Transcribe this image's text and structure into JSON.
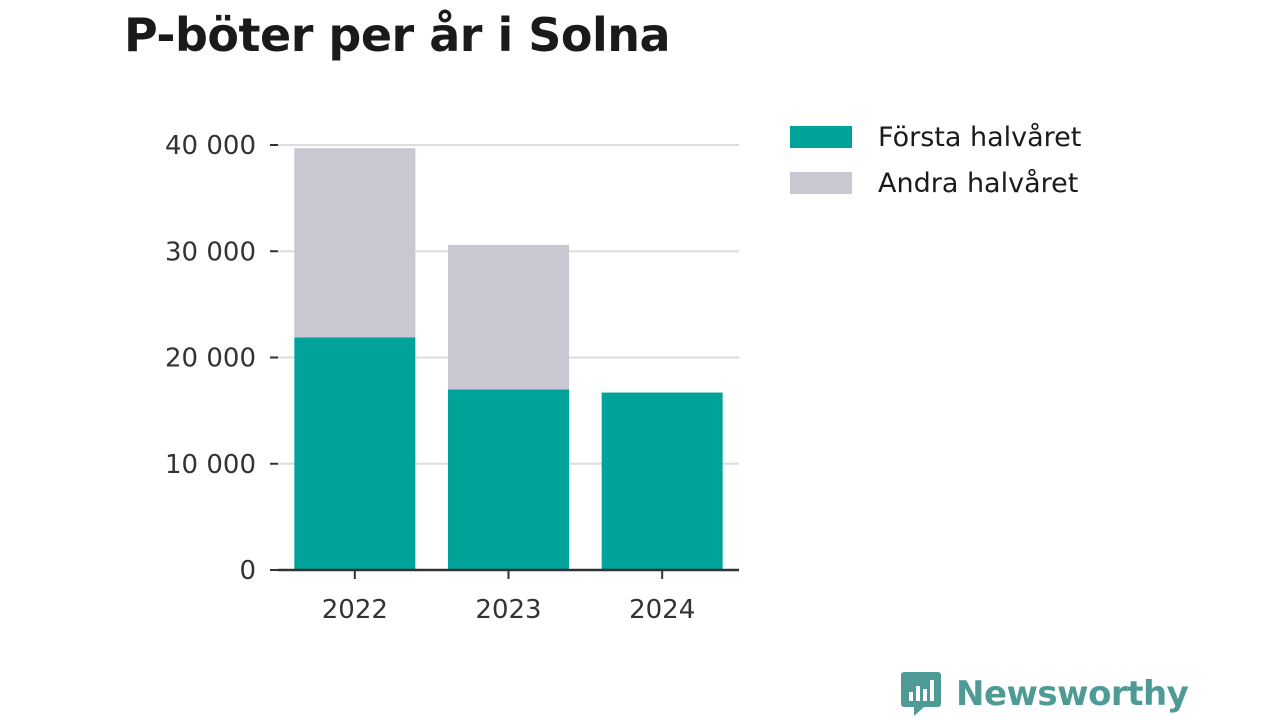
{
  "title": "P-böter per år i Solna",
  "chart_data": {
    "type": "bar",
    "stacked": true,
    "title": "P-böter per år i Solna",
    "categories": [
      "2022",
      "2023",
      "2024"
    ],
    "series": [
      {
        "name": "Första halvåret",
        "color": "#00a39a",
        "values": [
          21900,
          17000,
          16700
        ]
      },
      {
        "name": "Andra halvåret",
        "color": "#c8c7d2",
        "values": [
          17800,
          13600,
          0
        ]
      }
    ],
    "xlabel": "",
    "ylabel": "",
    "ylim": [
      0,
      40000
    ],
    "yticks": [
      0,
      10000,
      20000,
      30000,
      40000
    ],
    "ytick_labels": [
      "0",
      "10 000",
      "20 000",
      "30 000",
      "40 000"
    ],
    "grid": true,
    "legend_position": "top-right"
  },
  "brand": {
    "name": "Newsworthy",
    "color": "#4e9a95"
  }
}
